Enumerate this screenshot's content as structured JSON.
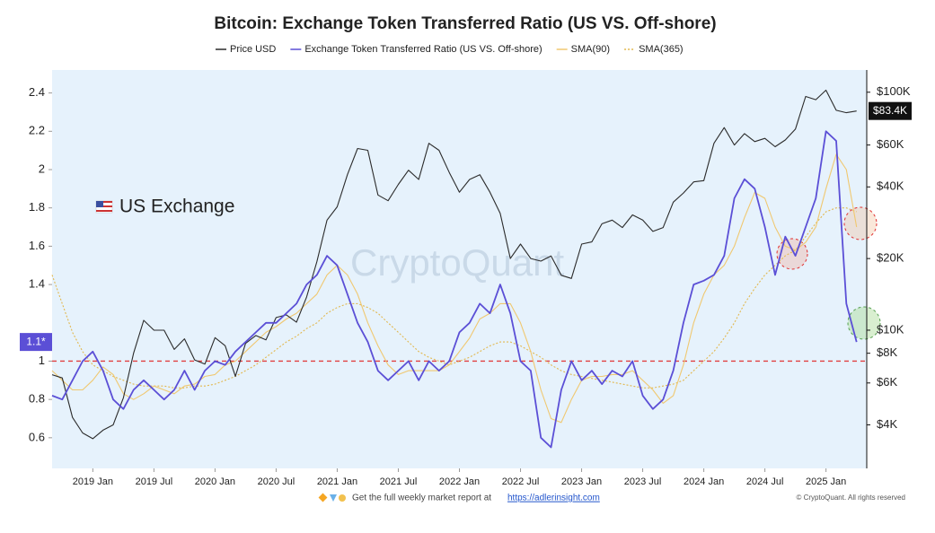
{
  "chart_data": {
    "type": "line",
    "title": "Bitcoin: Exchange Token Transferred Ratio (US VS. Off-shore)",
    "x": [
      "2018-09",
      "2018-10",
      "2018-11",
      "2018-12",
      "2019-01",
      "2019-02",
      "2019-03",
      "2019-04",
      "2019-05",
      "2019-06",
      "2019-07",
      "2019-08",
      "2019-09",
      "2019-10",
      "2019-11",
      "2019-12",
      "2020-01",
      "2020-02",
      "2020-03",
      "2020-04",
      "2020-05",
      "2020-06",
      "2020-07",
      "2020-08",
      "2020-09",
      "2020-10",
      "2020-11",
      "2020-12",
      "2021-01",
      "2021-02",
      "2021-03",
      "2021-04",
      "2021-05",
      "2021-06",
      "2021-07",
      "2021-08",
      "2021-09",
      "2021-10",
      "2021-11",
      "2021-12",
      "2022-01",
      "2022-02",
      "2022-03",
      "2022-04",
      "2022-05",
      "2022-06",
      "2022-07",
      "2022-08",
      "2022-09",
      "2022-10",
      "2022-11",
      "2022-12",
      "2023-01",
      "2023-02",
      "2023-03",
      "2023-04",
      "2023-05",
      "2023-06",
      "2023-07",
      "2023-08",
      "2023-09",
      "2023-10",
      "2023-11",
      "2023-12",
      "2024-01",
      "2024-02",
      "2024-03",
      "2024-04",
      "2024-05",
      "2024-06",
      "2024-07",
      "2024-08",
      "2024-09",
      "2024-10",
      "2024-11",
      "2024-12",
      "2025-01",
      "2025-02",
      "2025-03",
      "2025-04"
    ],
    "series": [
      {
        "name": "Price USD",
        "color": "#2b2b2b",
        "axis": "y2",
        "values": [
          6500,
          6300,
          4300,
          3700,
          3500,
          3800,
          4000,
          5200,
          8000,
          11000,
          10000,
          10000,
          8300,
          9200,
          7500,
          7200,
          9300,
          8600,
          6400,
          8800,
          9500,
          9100,
          11300,
          11600,
          10800,
          13800,
          19400,
          29000,
          33000,
          45000,
          58000,
          57000,
          37000,
          35000,
          41000,
          47000,
          43000,
          61000,
          57000,
          46000,
          38000,
          43000,
          45000,
          38000,
          31000,
          20000,
          23000,
          20000,
          19500,
          20500,
          17000,
          16500,
          23000,
          23500,
          28000,
          29000,
          27000,
          30500,
          29000,
          26000,
          27000,
          34500,
          37700,
          42000,
          42500,
          61000,
          71000,
          60000,
          67000,
          62000,
          64000,
          59000,
          63000,
          70000,
          96000,
          93000,
          102000,
          84000,
          82000,
          83400
        ]
      },
      {
        "name": "Exchange Token Transferred Ratio (US VS. Off-shore)",
        "color": "#5b4fd6",
        "values": [
          0.82,
          0.8,
          0.9,
          1.0,
          1.05,
          0.95,
          0.8,
          0.75,
          0.85,
          0.9,
          0.85,
          0.8,
          0.85,
          0.95,
          0.85,
          0.95,
          1.0,
          0.98,
          1.05,
          1.1,
          1.15,
          1.2,
          1.2,
          1.25,
          1.3,
          1.4,
          1.45,
          1.55,
          1.5,
          1.35,
          1.2,
          1.1,
          0.95,
          0.9,
          0.95,
          1.0,
          0.9,
          1.0,
          0.95,
          1.0,
          1.15,
          1.2,
          1.3,
          1.25,
          1.4,
          1.25,
          1.0,
          0.95,
          0.6,
          0.55,
          0.85,
          1.0,
          0.9,
          0.95,
          0.88,
          0.95,
          0.92,
          1.0,
          0.82,
          0.75,
          0.8,
          0.95,
          1.2,
          1.4,
          1.42,
          1.45,
          1.55,
          1.85,
          1.95,
          1.9,
          1.7,
          1.45,
          1.65,
          1.55,
          1.7,
          1.85,
          2.2,
          2.15,
          1.3,
          1.1
        ]
      },
      {
        "name": "SMA(90)",
        "color": "#f0c870",
        "values": [
          0.95,
          0.9,
          0.85,
          0.85,
          0.9,
          0.97,
          0.93,
          0.83,
          0.8,
          0.83,
          0.87,
          0.85,
          0.83,
          0.87,
          0.88,
          0.92,
          0.93,
          0.98,
          1.0,
          1.05,
          1.1,
          1.15,
          1.18,
          1.22,
          1.25,
          1.3,
          1.35,
          1.45,
          1.5,
          1.45,
          1.35,
          1.2,
          1.08,
          0.98,
          0.93,
          0.95,
          0.95,
          0.95,
          0.95,
          0.98,
          1.05,
          1.12,
          1.22,
          1.25,
          1.3,
          1.3,
          1.2,
          1.05,
          0.85,
          0.7,
          0.68,
          0.8,
          0.9,
          0.92,
          0.92,
          0.93,
          0.93,
          0.95,
          0.9,
          0.85,
          0.78,
          0.82,
          0.98,
          1.2,
          1.35,
          1.45,
          1.5,
          1.6,
          1.75,
          1.88,
          1.85,
          1.7,
          1.6,
          1.58,
          1.62,
          1.7,
          1.9,
          2.08,
          2.0,
          1.7
        ]
      },
      {
        "name": "SMA(365)",
        "color": "#e2b84f",
        "dashed": true,
        "values": [
          1.45,
          1.3,
          1.15,
          1.05,
          0.98,
          0.95,
          0.92,
          0.9,
          0.88,
          0.87,
          0.87,
          0.87,
          0.86,
          0.86,
          0.87,
          0.87,
          0.88,
          0.9,
          0.92,
          0.95,
          0.98,
          1.02,
          1.06,
          1.1,
          1.13,
          1.17,
          1.2,
          1.25,
          1.28,
          1.3,
          1.3,
          1.28,
          1.25,
          1.2,
          1.15,
          1.1,
          1.05,
          1.02,
          1.0,
          0.98,
          1.0,
          1.02,
          1.05,
          1.08,
          1.1,
          1.1,
          1.08,
          1.05,
          1.02,
          0.98,
          0.95,
          0.93,
          0.92,
          0.91,
          0.9,
          0.89,
          0.88,
          0.87,
          0.86,
          0.86,
          0.87,
          0.88,
          0.9,
          0.95,
          1.0,
          1.05,
          1.12,
          1.2,
          1.3,
          1.38,
          1.45,
          1.5,
          1.55,
          1.58,
          1.65,
          1.72,
          1.78,
          1.8,
          1.8,
          1.78
        ]
      }
    ],
    "xlim": [
      "2018-09",
      "2025-05"
    ],
    "xticks": [
      {
        "value": "2019-01",
        "label": "2019 Jan"
      },
      {
        "value": "2019-07",
        "label": "2019 Jul"
      },
      {
        "value": "2020-01",
        "label": "2020 Jan"
      },
      {
        "value": "2020-07",
        "label": "2020 Jul"
      },
      {
        "value": "2021-01",
        "label": "2021 Jan"
      },
      {
        "value": "2021-07",
        "label": "2021 Jul"
      },
      {
        "value": "2022-01",
        "label": "2022 Jan"
      },
      {
        "value": "2022-07",
        "label": "2022 Jul"
      },
      {
        "value": "2023-01",
        "label": "2023 Jan"
      },
      {
        "value": "2023-07",
        "label": "2023 Jul"
      },
      {
        "value": "2024-01",
        "label": "2024 Jan"
      },
      {
        "value": "2024-07",
        "label": "2024 Jul"
      },
      {
        "value": "2025-01",
        "label": "2025 Jan"
      }
    ],
    "ylim": [
      0.44,
      2.52
    ],
    "yticks": [
      0.6,
      0.8,
      1,
      1.4,
      1.6,
      1.8,
      2,
      2.2,
      2.4
    ],
    "y2lim": [
      2625,
      124000
    ],
    "y2scale": "log",
    "y2ticks": [
      {
        "value": 4000,
        "label": "$4K"
      },
      {
        "value": 6000,
        "label": "$6K"
      },
      {
        "value": 8000,
        "label": "$8K"
      },
      {
        "value": 10000,
        "label": "$10K"
      },
      {
        "value": 20000,
        "label": "$20K"
      },
      {
        "value": 40000,
        "label": "$40K"
      },
      {
        "value": 60000,
        "label": "$60K"
      },
      {
        "value": 100000,
        "label": "$100K"
      }
    ],
    "threshold": 1,
    "last_value_labels": [
      "1.1*",
      "$83.4K"
    ],
    "annotation": "US Exchange",
    "watermark": "CryptoQuant",
    "footer_text": "Get the full weekly market report at",
    "footer_link": "https://adlerinsight.com",
    "copyright": "© CryptoQuant. All rights reserved",
    "legend": "top"
  }
}
